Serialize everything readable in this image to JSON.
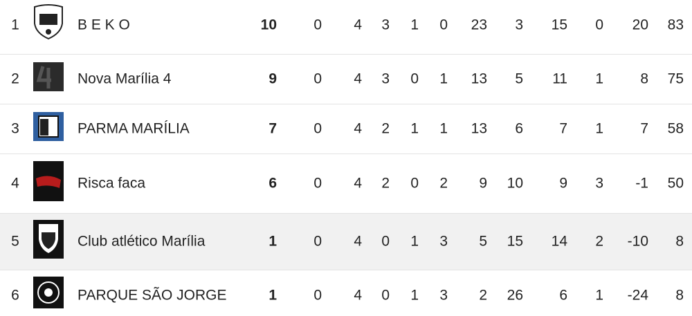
{
  "table": {
    "rows": [
      [
        1,
        "B E K O",
        10,
        0,
        4,
        3,
        1,
        0,
        23,
        3,
        15,
        0,
        20,
        83
      ],
      [
        2,
        "Nova Marília 4",
        9,
        0,
        4,
        3,
        0,
        1,
        13,
        5,
        11,
        1,
        8,
        75
      ],
      [
        3,
        "PARMA MARÍLIA",
        7,
        0,
        4,
        2,
        1,
        1,
        13,
        6,
        7,
        1,
        7,
        58
      ],
      [
        4,
        "Risca faca",
        6,
        0,
        4,
        2,
        0,
        2,
        9,
        10,
        9,
        3,
        -1,
        50
      ],
      [
        5,
        "Club atlético Marília",
        1,
        0,
        4,
        0,
        1,
        3,
        5,
        15,
        14,
        2,
        -10,
        8
      ],
      [
        6,
        "PARQUE SÃO JORGE",
        1,
        0,
        4,
        0,
        1,
        3,
        2,
        26,
        6,
        1,
        -24,
        8
      ]
    ]
  }
}
